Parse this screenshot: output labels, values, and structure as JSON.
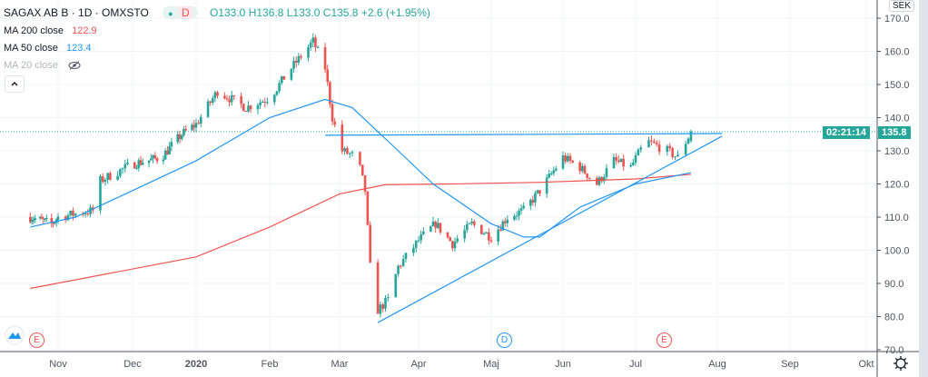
{
  "header": {
    "symbol": "SAGAX AB B · 1D · OMXSTO",
    "status_dot": "●",
    "interval_badge": "D",
    "o": "O133.0",
    "h": "H136.8",
    "l": "L133.0",
    "c": "C135.8",
    "change": "+2.6 (+1.95%)"
  },
  "indicators": [
    {
      "label": "MA 200 close",
      "value": "122.9",
      "color": "#ef5350"
    },
    {
      "label": "MA 50 close",
      "value": "123.4",
      "color": "#2196f3"
    },
    {
      "label": "MA 20 close",
      "value": "",
      "hidden": true
    }
  ],
  "currency": "SEK",
  "last_price": "135.8",
  "countdown": "02:21:14",
  "collapse_icon": "chevron-up-icon",
  "settings_icon": "gear-icon",
  "markers": [
    {
      "label": "E",
      "color": "#ef5350"
    },
    {
      "label": "D",
      "color": "#2196f3"
    },
    {
      "label": "E",
      "color": "#ef5350"
    }
  ],
  "chart_data": {
    "type": "candlestick",
    "ylim": [
      70,
      170
    ],
    "y_ticks": [
      "70.0",
      "80.0",
      "90.0",
      "100.0",
      "110.0",
      "120.0",
      "130.0",
      "140.0",
      "150.0",
      "160.0",
      "170.0"
    ],
    "x_ticks": [
      "Nov",
      "Dec",
      "2020",
      "Feb",
      "Mar",
      "Apr",
      "Maj",
      "Jun",
      "Jul",
      "Aug",
      "Sep",
      "Okt"
    ],
    "grid": true,
    "colors": {
      "up": "#26a69a",
      "down": "#ef5350",
      "ma50": "#2196f3",
      "ma200": "#ef5350"
    },
    "approx_close": [
      [
        "2019-10-15",
        110
      ],
      [
        "2019-10-28",
        108
      ],
      [
        "2019-11-01",
        110
      ],
      [
        "2019-11-15",
        112
      ],
      [
        "2019-11-18",
        121
      ],
      [
        "2019-12-01",
        126
      ],
      [
        "2019-12-15",
        128
      ],
      [
        "2019-12-25",
        135
      ],
      [
        "2020-01-01",
        138
      ],
      [
        "2020-01-10",
        148
      ],
      [
        "2020-01-22",
        143
      ],
      [
        "2020-02-01",
        146
      ],
      [
        "2020-02-10",
        155
      ],
      [
        "2020-02-19",
        163
      ],
      [
        "2020-02-24",
        155
      ],
      [
        "2020-02-27",
        140
      ],
      [
        "2020-03-02",
        130
      ],
      [
        "2020-03-08",
        128
      ],
      [
        "2020-03-11",
        118
      ],
      [
        "2020-03-13",
        95
      ],
      [
        "2020-03-16",
        82
      ],
      [
        "2020-03-20",
        85
      ],
      [
        "2020-03-24",
        95
      ],
      [
        "2020-04-01",
        103
      ],
      [
        "2020-04-08",
        108
      ],
      [
        "2020-04-15",
        102
      ],
      [
        "2020-04-23",
        108
      ],
      [
        "2020-05-01",
        104
      ],
      [
        "2020-05-08",
        110
      ],
      [
        "2020-05-15",
        112
      ],
      [
        "2020-05-22",
        118
      ],
      [
        "2020-06-01",
        128
      ],
      [
        "2020-06-08",
        125
      ],
      [
        "2020-06-15",
        120
      ],
      [
        "2020-06-22",
        127
      ],
      [
        "2020-06-29",
        125
      ],
      [
        "2020-07-05",
        133
      ],
      [
        "2020-07-13",
        130
      ],
      [
        "2020-07-17",
        128
      ],
      [
        "2020-07-22",
        135.8
      ]
    ],
    "ma50": [
      [
        "2019-10-15",
        107
      ],
      [
        "2019-11-08",
        110
      ],
      [
        "2019-12-01",
        118
      ],
      [
        "2020-01-01",
        127
      ],
      [
        "2020-02-01",
        140
      ],
      [
        "2020-02-24",
        145.5
      ],
      [
        "2020-03-06",
        143
      ],
      [
        "2020-03-24",
        130
      ],
      [
        "2020-04-07",
        120
      ],
      [
        "2020-05-01",
        108
      ],
      [
        "2020-05-15",
        104
      ],
      [
        "2020-05-22",
        104
      ],
      [
        "2020-06-08",
        113
      ],
      [
        "2020-07-01",
        120
      ],
      [
        "2020-07-22",
        123.4
      ]
    ],
    "ma200": [
      [
        "2019-10-15",
        88.5
      ],
      [
        "2020-01-01",
        98
      ],
      [
        "2020-02-01",
        107
      ],
      [
        "2020-03-01",
        117
      ],
      [
        "2020-03-19",
        119.8
      ],
      [
        "2020-04-15",
        120
      ],
      [
        "2020-05-22",
        120.5
      ],
      [
        "2020-07-01",
        121.5
      ],
      [
        "2020-07-22",
        122.9
      ]
    ],
    "trendlines": [
      {
        "from": [
          "2020-02-24",
          134.7
        ],
        "to": [
          "2020-08-03",
          135.2
        ]
      },
      {
        "from": [
          "2020-03-16",
          78.2
        ],
        "to": [
          "2020-08-03",
          134.4
        ]
      }
    ]
  }
}
